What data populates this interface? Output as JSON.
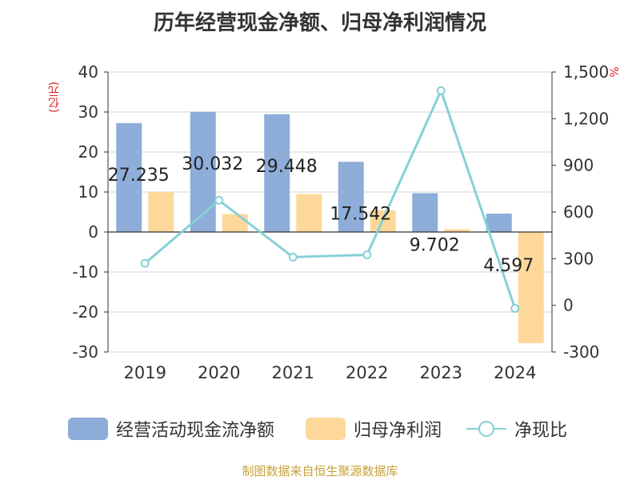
{
  "title": "历年经营现金净额、归母净利润情况",
  "left_unit": "(亿元)",
  "right_unit": "%",
  "source": "制图数据来自恒生聚源数据库",
  "colors": {
    "ocf": "#8eadd9",
    "net_profit": "#fdd89a",
    "ratio": "#86d1d6",
    "axis": "#333333",
    "grid": "#d0d0d0"
  },
  "legend": {
    "ocf": "经营活动现金流净额",
    "net_profit": "归母净利润",
    "ratio": "净现比"
  },
  "chart_data": {
    "type": "bar",
    "categories": [
      "2019",
      "2020",
      "2021",
      "2022",
      "2023",
      "2024"
    ],
    "series": [
      {
        "name": "经营活动现金流净额",
        "axis": "left",
        "values": [
          27.235,
          30.032,
          29.448,
          17.542,
          9.702,
          4.597
        ],
        "labels": [
          "27.235",
          "30.032",
          "29.448",
          "17.542",
          "9.702",
          "4.597"
        ]
      },
      {
        "name": "归母净利润",
        "axis": "left",
        "values": [
          10.0,
          4.5,
          9.5,
          5.4,
          0.7,
          -27.8
        ]
      },
      {
        "name": "净现比",
        "type": "line",
        "axis": "right",
        "values": [
          270,
          675,
          310,
          325,
          1380,
          -20
        ]
      }
    ],
    "yleft": {
      "min": -30,
      "max": 40,
      "ticks": [
        40,
        30,
        20,
        10,
        0,
        -10,
        -20,
        -30
      ],
      "tick_labels": [
        "40",
        "30",
        "20",
        "10",
        "0",
        "-10",
        "-20",
        "-30"
      ]
    },
    "yright": {
      "min": -300,
      "max": 1500,
      "ticks": [
        1500,
        1200,
        900,
        600,
        300,
        0,
        -300
      ],
      "tick_labels": [
        "1,500",
        "1,200",
        "900",
        "600",
        "300",
        "0",
        "-300"
      ]
    }
  }
}
